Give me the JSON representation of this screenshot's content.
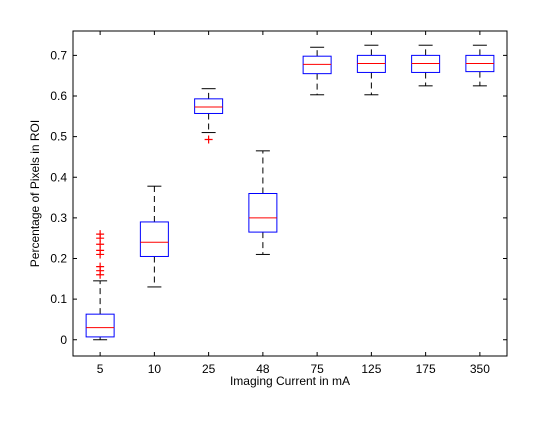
{
  "chart_data": {
    "type": "box",
    "xlabel": "Imaging Current in mA",
    "ylabel": "Percentage of Pixels in ROI",
    "ylim": [
      -0.04,
      0.76
    ],
    "yticks": [
      0,
      0.1,
      0.2,
      0.3,
      0.4,
      0.5,
      0.6,
      0.7
    ],
    "ytick_labels": [
      "0",
      "0.1",
      "0.2",
      "0.3",
      "0.4",
      "0.5",
      "0.6",
      "0.7"
    ],
    "categories": [
      "5",
      "10",
      "25",
      "48",
      "75",
      "125",
      "175",
      "350"
    ],
    "boxes": [
      {
        "whisker_low": 0.0,
        "q1": 0.007,
        "median": 0.03,
        "q3": 0.063,
        "whisker_high": 0.145,
        "outliers": [
          0.16,
          0.17,
          0.18,
          0.21,
          0.22,
          0.235,
          0.25,
          0.26
        ]
      },
      {
        "whisker_low": 0.13,
        "q1": 0.205,
        "median": 0.24,
        "q3": 0.29,
        "whisker_high": 0.378,
        "outliers": []
      },
      {
        "whisker_low": 0.51,
        "q1": 0.557,
        "median": 0.573,
        "q3": 0.593,
        "whisker_high": 0.618,
        "outliers": [
          0.493
        ]
      },
      {
        "whisker_low": 0.21,
        "q1": 0.265,
        "median": 0.3,
        "q3": 0.36,
        "whisker_high": 0.465,
        "outliers": []
      },
      {
        "whisker_low": 0.603,
        "q1": 0.655,
        "median": 0.678,
        "q3": 0.698,
        "whisker_high": 0.72,
        "outliers": []
      },
      {
        "whisker_low": 0.603,
        "q1": 0.658,
        "median": 0.68,
        "q3": 0.7,
        "whisker_high": 0.725,
        "outliers": []
      },
      {
        "whisker_low": 0.625,
        "q1": 0.658,
        "median": 0.68,
        "q3": 0.7,
        "whisker_high": 0.725,
        "outliers": []
      },
      {
        "whisker_low": 0.625,
        "q1": 0.66,
        "median": 0.68,
        "q3": 0.7,
        "whisker_high": 0.725,
        "outliers": []
      }
    ],
    "grid": false,
    "colors": {
      "box": "#0000ff",
      "median": "#ff0000",
      "whisker": "#000000",
      "outlier": "#ff0000",
      "axes": "#000000"
    }
  }
}
